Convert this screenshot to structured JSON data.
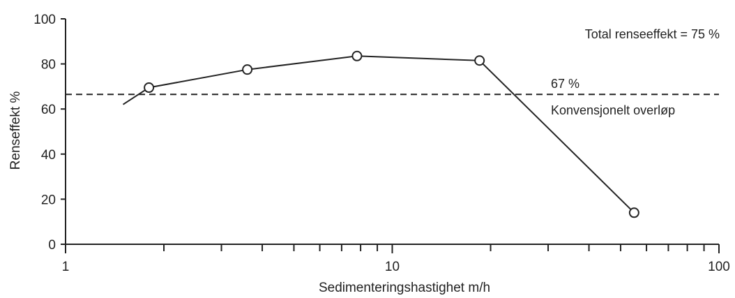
{
  "chart_data": {
    "type": "line",
    "title": "",
    "xlabel": "Sedimenteringshastighet m/h",
    "ylabel": "Renseffekt %",
    "x_scale": "log",
    "xlim": [
      1,
      100
    ],
    "ylim": [
      0,
      100
    ],
    "x_tick_labels": [
      "1",
      "10",
      "100"
    ],
    "y_tick_labels": [
      "0",
      "20",
      "40",
      "60",
      "80",
      "100"
    ],
    "grid": false,
    "series": [
      {
        "x": [
          1.5,
          1.8,
          3.6,
          7.8,
          18.5,
          55
        ],
        "y": [
          62,
          69.5,
          77.5,
          83.5,
          81.5,
          14
        ],
        "markers": [
          false,
          true,
          true,
          true,
          true,
          true
        ]
      }
    ],
    "reference_line": {
      "y": 66.5,
      "style": "dashed"
    },
    "annotations": {
      "total": "Total renseeffekt = 75 %",
      "ref_value": "67 %",
      "ref_label": "Konvensjonelt overløp"
    },
    "colors": {
      "line": "#222222",
      "marker_fill": "#ffffff"
    }
  }
}
